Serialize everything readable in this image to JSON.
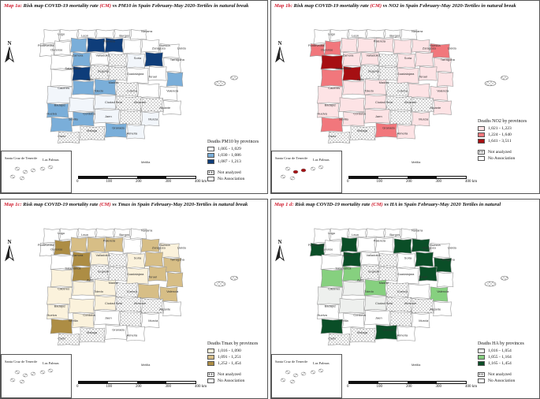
{
  "palettes": {
    "a": {
      "low": "#f2f6fb",
      "mid": "#7aaed9",
      "high": "#0e3d7a"
    },
    "b": {
      "low": "#fde3e5",
      "mid": "#f1777c",
      "high": "#a60f12"
    },
    "c": {
      "low": "#fbf2dc",
      "mid": "#d7be86",
      "high": "#ad8d44"
    },
    "d": {
      "low": "#eef0ee",
      "mid": "#86d07f",
      "high": "#0a4e27"
    }
  },
  "maps": [
    {
      "id": "a",
      "title_prefix": "Map 1a:",
      "title_main": " Risk map COVID-19 mortality rate ",
      "title_cm": "(CM)",
      "title_suffix": " vs PM10 in Spain February-May 2020-Tertiles in natural break",
      "legend_title": "Deaths PM10 by provinces",
      "classes": [
        "1,005 - 1,029",
        "1,030 - 1,086",
        "1,087 - 1,213"
      ]
    },
    {
      "id": "b",
      "title_prefix": "Map 1b:",
      "title_main": " Risk map  COVID-19 mortality rate ",
      "title_cm": "(CM)",
      "title_suffix": " vs NO2 in Spain February-May 2020-Tertiles in natural break",
      "legend_title": "Deaths NO2 by provinces",
      "classes": [
        "1,021 - 1,223",
        "1,224 - 1,640",
        "1,641 - 3,511"
      ]
    },
    {
      "id": "c",
      "title_prefix": "Map 1c:",
      "title_main": " Risk map COVID-19 mortality rate ",
      "title_cm": "(CM)",
      "title_suffix": " vs Tmax  in Spain February-May 2020-Tertiles in natural break",
      "legend_title": "Deaths Tmax by provinces",
      "classes": [
        "1,016 - 1,090",
        "1,091 - 1,251",
        "1,252 - 1,454"
      ]
    },
    {
      "id": "d",
      "title_prefix": "Map 1 d:",
      "title_main": " Risk map  COVID-19 mortality rate ",
      "title_cm": "(CM)",
      "title_suffix": " vs   HA  in Spain February-May 2020 Tertiles in natural",
      "legend_title": "Deaths HA by provinces",
      "classes": [
        "1,016 - 1,054",
        "1,055 - 1,164",
        "1,165 - 1,454"
      ]
    }
  ],
  "legend_extra": {
    "not_analyzed": "Not analyzed",
    "no_association": "No Association"
  },
  "scale_ticks": [
    "0",
    "100",
    "200",
    "300",
    "400 km"
  ],
  "north_label": "N",
  "canary_labels": {
    "left": "Santa Cruz de Tenerife",
    "right": "Las Palmas"
  },
  "melilla": "Melilla",
  "cities": [
    "Lugo",
    "Pontevedra",
    "Ourense",
    "Leon",
    "Palencia",
    "Burgos",
    "Navarra",
    "Zaragoza",
    "Zamora",
    "Valladolid",
    "Soria",
    "Tarragona",
    "Salamanca",
    "Segovia",
    "Guadalajara",
    "Avila",
    "Madrid",
    "Toledo",
    "Cuenca",
    "Valencia",
    "Ciudad Real",
    "Albacete",
    "Huelva",
    "Murcia",
    "Cadiz",
    "Malaga",
    "Almeria",
    "Jaen",
    "Granada",
    "Sevilla",
    "Teruel",
    "Caceres",
    "Badajoz",
    "Cordoba",
    "Alicante",
    "Huesca",
    "Lleida"
  ]
}
